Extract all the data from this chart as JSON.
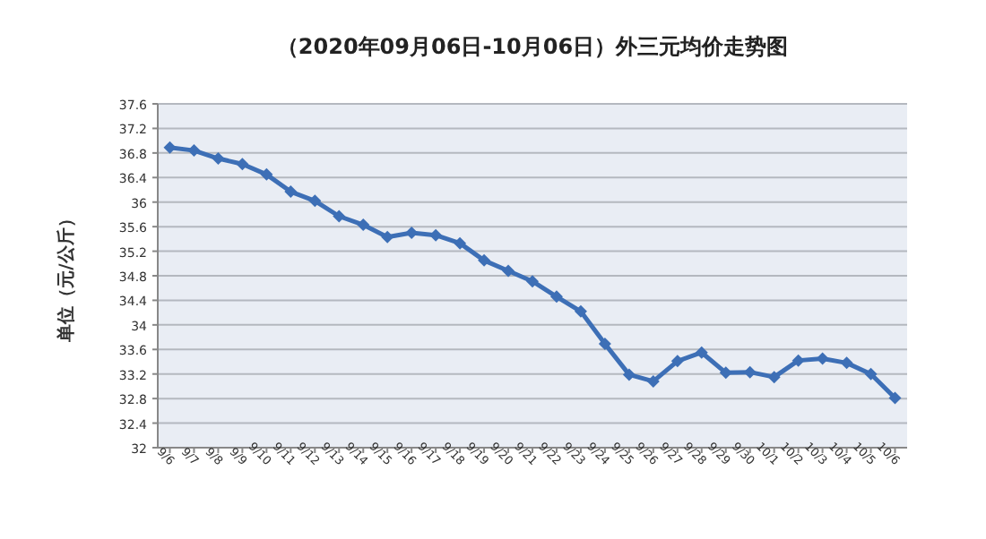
{
  "chart_data": {
    "type": "line",
    "title": "（2020年09月06日-10月06日）外三元均价走势图",
    "ylabel": "单位（元/公斤）",
    "categories": [
      "9/6",
      "9/7",
      "9/8",
      "9/9",
      "9/10",
      "9/11",
      "9/12",
      "9/13",
      "9/14",
      "9/15",
      "9/16",
      "9/17",
      "9/18",
      "9/19",
      "9/20",
      "9/21",
      "9/22",
      "9/23",
      "9/24",
      "9/25",
      "9/26",
      "9/27",
      "9/28",
      "9/29",
      "9/30",
      "10/1",
      "10/2",
      "10/3",
      "10/4",
      "10/5",
      "10/6"
    ],
    "series": [
      {
        "color": "#3d6fb6",
        "values": [
          36.89,
          36.84,
          36.71,
          36.62,
          36.45,
          36.17,
          36.02,
          35.77,
          35.63,
          35.43,
          35.5,
          35.46,
          35.33,
          35.05,
          34.88,
          34.71,
          34.46,
          34.22,
          33.69,
          33.19,
          33.08,
          33.41,
          33.55,
          33.22,
          33.23,
          33.15,
          33.42,
          33.45,
          33.38,
          33.2,
          32.81
        ]
      }
    ],
    "ylim": [
      32,
      37.6
    ],
    "yticks": [
      32,
      32.4,
      32.8,
      33.2,
      33.6,
      34,
      34.4,
      34.8,
      35.2,
      35.6,
      36,
      36.4,
      36.8,
      37.2,
      37.6
    ],
    "grid": "y",
    "marker": "diamond",
    "line_style": "solid"
  }
}
